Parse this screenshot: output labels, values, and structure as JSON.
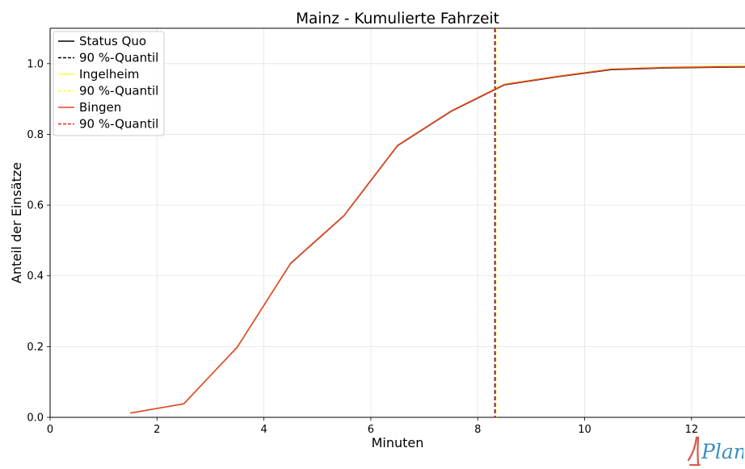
{
  "chart_data": {
    "type": "line",
    "title": "Mainz - Kumulierte Fahrzeit",
    "xlabel": "Minuten",
    "ylabel": "Anteil der Einsätze",
    "xlim": [
      0,
      13
    ],
    "ylim": [
      0,
      1.1
    ],
    "xticks": [
      0,
      2,
      4,
      6,
      8,
      10,
      12
    ],
    "yticks": [
      0.0,
      0.2,
      0.4,
      0.6,
      0.8,
      1.0
    ],
    "xtick_labels": [
      "0",
      "2",
      "4",
      "6",
      "8",
      "10",
      "12"
    ],
    "ytick_labels": [
      "0.0",
      "0.2",
      "0.4",
      "0.6",
      "0.8",
      "1.0"
    ],
    "grid": true,
    "legend_position": "top-left",
    "series": [
      {
        "name": "Status Quo",
        "color": "#000000",
        "style": "solid",
        "x": [
          1.5,
          2.5,
          3.5,
          4.5,
          5.5,
          6.5,
          7.5,
          8.5,
          9.5,
          10.5,
          11.5,
          12.5,
          13.5
        ],
        "y": [
          0.012,
          0.038,
          0.198,
          0.435,
          0.57,
          0.768,
          0.865,
          0.94,
          0.963,
          0.983,
          0.988,
          0.99,
          0.991
        ]
      },
      {
        "name": "90 %-Quantil",
        "color": "#000000",
        "style": "dashed",
        "vline": 8.32
      },
      {
        "name": "Ingelheim",
        "color": "#ffff33",
        "style": "solid",
        "x": [
          1.5,
          2.5,
          3.5,
          4.5,
          5.5,
          6.5,
          7.5,
          8.5,
          9.5,
          10.5,
          11.5,
          12.5,
          13.5
        ],
        "y": [
          0.012,
          0.038,
          0.198,
          0.436,
          0.571,
          0.769,
          0.866,
          0.942,
          0.965,
          0.985,
          0.99,
          0.993,
          0.994
        ]
      },
      {
        "name": "90 %-Quantil",
        "color": "#ffff33",
        "style": "dashed",
        "vline": 8.34
      },
      {
        "name": "Bingen",
        "color": "#e8452c",
        "style": "solid",
        "x": [
          1.5,
          2.5,
          3.5,
          4.5,
          5.5,
          6.5,
          7.5,
          8.5,
          9.5,
          10.5,
          11.5,
          12.5,
          13.5
        ],
        "y": [
          0.012,
          0.038,
          0.198,
          0.436,
          0.571,
          0.769,
          0.866,
          0.941,
          0.964,
          0.984,
          0.989,
          0.991,
          0.992
        ]
      },
      {
        "name": "90 %-Quantil",
        "color": "#ff2020",
        "style": "dashed",
        "vline": 8.33
      }
    ]
  },
  "logo": {
    "text": "1Plan",
    "colors": [
      "#d9574a",
      "#3b8ec2"
    ]
  }
}
